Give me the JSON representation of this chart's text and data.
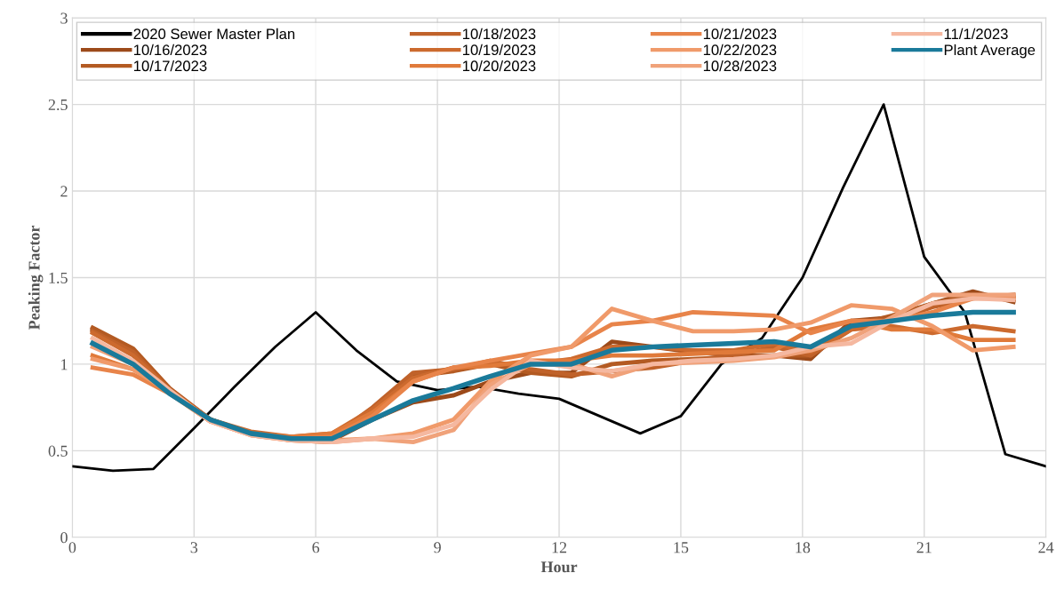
{
  "chart_data": {
    "type": "line",
    "xlabel": "Hour",
    "ylabel": "Peaking Factor",
    "xlim": [
      0,
      24
    ],
    "xticks": [
      0,
      3,
      6,
      9,
      12,
      15,
      18,
      21,
      24
    ],
    "ylim": [
      0,
      3
    ],
    "yticks": [
      0,
      0.5,
      1,
      1.5,
      2,
      2.5,
      3
    ],
    "grid": true,
    "legend": "top",
    "marker": "none",
    "line_style": "solid",
    "x": [
      0.5,
      1.5,
      2.4,
      3.4,
      4.4,
      5.4,
      6.4,
      7.4,
      8.4,
      9.4,
      10.3,
      11.3,
      12.3,
      13.3,
      14.3,
      15.3,
      16.3,
      17.3,
      18.2,
      19.2,
      20.2,
      21.2,
      22.2,
      23.2
    ],
    "series": [
      {
        "name": "2020 Sewer Master Plan",
        "color": "#000000",
        "x": [
          0,
          1,
          2,
          3,
          4,
          5,
          6,
          7,
          8,
          9,
          10,
          11,
          12,
          13,
          14,
          15,
          16,
          17,
          18,
          19,
          20,
          21,
          22,
          23,
          24
        ],
        "values": [
          0.41,
          0.385,
          0.395,
          0.63,
          0.87,
          1.1,
          1.3,
          1.08,
          0.9,
          0.85,
          0.87,
          0.83,
          0.8,
          0.7,
          0.6,
          0.7,
          1.0,
          1.15,
          1.5,
          2.02,
          2.5,
          1.62,
          1.3,
          0.48,
          0.41
        ]
      },
      {
        "name": "10/16/2023",
        "color": "#9c4a1a",
        "values": [
          1.2,
          1.08,
          0.85,
          0.68,
          0.6,
          0.56,
          0.56,
          0.68,
          0.78,
          0.82,
          0.9,
          0.95,
          0.95,
          1.13,
          1.1,
          1.07,
          1.05,
          1.05,
          1.03,
          1.25,
          1.27,
          1.35,
          1.42,
          1.36
        ]
      },
      {
        "name": "10/17/2023",
        "color": "#b35a22",
        "values": [
          1.21,
          1.09,
          0.86,
          0.68,
          0.6,
          0.56,
          0.55,
          0.72,
          0.93,
          0.96,
          1.0,
          0.95,
          0.93,
          1.0,
          1.02,
          1.03,
          1.04,
          1.05,
          1.05,
          1.22,
          1.28,
          1.35,
          1.4,
          1.38
        ]
      },
      {
        "name": "10/18/2023",
        "color": "#c0622a",
        "values": [
          1.19,
          1.07,
          0.85,
          0.68,
          0.6,
          0.57,
          0.58,
          0.75,
          0.95,
          0.97,
          1.02,
          0.97,
          0.94,
          0.96,
          0.98,
          1.02,
          1.05,
          1.1,
          1.05,
          1.2,
          1.25,
          1.33,
          1.38,
          1.4
        ]
      },
      {
        "name": "10/19/2023",
        "color": "#cc6a2e",
        "values": [
          1.18,
          1.05,
          0.85,
          0.68,
          0.61,
          0.58,
          0.6,
          0.74,
          0.92,
          0.98,
          1.0,
          1.0,
          1.03,
          1.1,
          1.1,
          1.08,
          1.08,
          1.12,
          1.07,
          1.2,
          1.22,
          1.18,
          1.22,
          1.19
        ]
      },
      {
        "name": "10/20/2023",
        "color": "#e07a3a",
        "values": [
          1.05,
          0.97,
          0.84,
          0.68,
          0.6,
          0.58,
          0.6,
          0.72,
          0.9,
          0.98,
          0.99,
          1.02,
          1.02,
          1.05,
          1.05,
          1.06,
          1.07,
          1.08,
          1.2,
          1.25,
          1.2,
          1.2,
          1.14,
          1.14
        ]
      },
      {
        "name": "10/21/2023",
        "color": "#e8844a",
        "values": [
          0.98,
          0.94,
          0.83,
          0.67,
          0.6,
          0.57,
          0.58,
          0.7,
          0.9,
          0.98,
          1.02,
          1.06,
          1.1,
          1.23,
          1.25,
          1.3,
          1.29,
          1.28,
          1.18,
          1.25,
          1.25,
          1.3,
          1.38,
          1.38
        ]
      },
      {
        "name": "10/22/2023",
        "color": "#f09a6a",
        "values": [
          1.03,
          0.97,
          0.84,
          0.67,
          0.59,
          0.56,
          0.56,
          0.57,
          0.6,
          0.68,
          0.9,
          1.05,
          1.1,
          1.32,
          1.25,
          1.19,
          1.19,
          1.2,
          1.24,
          1.34,
          1.32,
          1.22,
          1.08,
          1.1
        ]
      },
      {
        "name": "10/28/2023",
        "color": "#f0a27a",
        "values": [
          1.1,
          1.0,
          0.84,
          0.67,
          0.59,
          0.56,
          0.55,
          0.57,
          0.55,
          0.62,
          0.88,
          1.0,
          1.0,
          0.93,
          1.0,
          1.01,
          1.02,
          1.04,
          1.08,
          1.15,
          1.27,
          1.4,
          1.4,
          1.4
        ]
      },
      {
        "name": "11/1/2023",
        "color": "#f5b8a0",
        "values": [
          1.15,
          1.02,
          0.85,
          0.67,
          0.59,
          0.56,
          0.55,
          0.57,
          0.58,
          0.65,
          0.85,
          1.02,
          0.98,
          0.96,
          1.0,
          1.02,
          1.03,
          1.05,
          1.1,
          1.12,
          1.25,
          1.35,
          1.38,
          1.37
        ]
      },
      {
        "name": "Plant Average",
        "color": "#1a7a9a",
        "values": [
          1.12,
          1.0,
          0.83,
          0.68,
          0.6,
          0.57,
          0.57,
          0.68,
          0.79,
          0.86,
          0.93,
          1.0,
          1.0,
          1.08,
          1.1,
          1.11,
          1.12,
          1.13,
          1.1,
          1.22,
          1.25,
          1.28,
          1.3,
          1.3
        ]
      }
    ]
  }
}
